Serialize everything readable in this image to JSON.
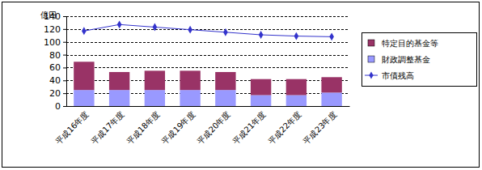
{
  "chart_data": {
    "type": "bar",
    "y_label": "億円",
    "categories": [
      "平成16年度",
      "平成17年度",
      "平成18年度",
      "平成19年度",
      "平成20年度",
      "平成21年度",
      "平成22年度",
      "平成23年度"
    ],
    "series": [
      {
        "name": "特定目的基金等",
        "type": "bar",
        "color": "#993366",
        "values": [
          44,
          28,
          30,
          30,
          28,
          25,
          25,
          24
        ]
      },
      {
        "name": "財政調整基金",
        "type": "bar",
        "color": "#9999ff",
        "values": [
          25,
          25,
          25,
          25,
          25,
          17,
          17,
          21
        ]
      },
      {
        "name": "市債残高",
        "type": "line",
        "color": "#3333cc",
        "marker": "diamond",
        "values": [
          117,
          127,
          123,
          119,
          115,
          111,
          109,
          108
        ]
      }
    ],
    "stacked": true,
    "ylim": [
      0,
      140
    ],
    "yticks": [
      0,
      20,
      40,
      60,
      80,
      100,
      120,
      140
    ],
    "grid": true,
    "legend": "right"
  }
}
